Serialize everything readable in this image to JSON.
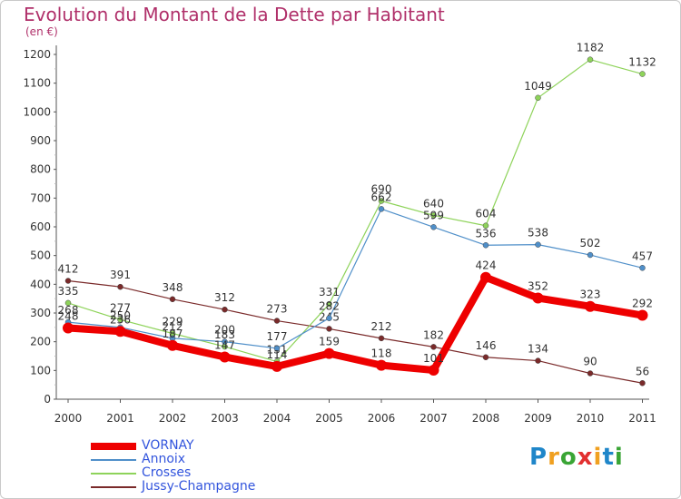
{
  "header": {
    "title": "Evolution du Montant de la Dette par Habitant",
    "unit": "(en €)"
  },
  "logo": {
    "text": "Proxiti",
    "colors": [
      "#1f86c9",
      "#f0a020",
      "#3aa535",
      "#e23030",
      "#f0a020",
      "#1f86c9",
      "#3aa535"
    ]
  },
  "chart_data": {
    "type": "line",
    "x": [
      "2000",
      "2001",
      "2002",
      "2003",
      "2004",
      "2005",
      "2006",
      "2007",
      "2008",
      "2009",
      "2010",
      "2011"
    ],
    "ylim": [
      0,
      1200
    ],
    "yticks": [
      "0",
      "100",
      "200",
      "300",
      "400",
      "500",
      "600",
      "700",
      "800",
      "900",
      "1000",
      "1100",
      "1200"
    ],
    "grid": false,
    "legend_position": "bottom-left",
    "series": [
      {
        "name": "Jussy-Champagne",
        "color": "#7a2a2a",
        "width": 1.2,
        "values": [
          412,
          391,
          348,
          312,
          273,
          245,
          212,
          182,
          146,
          134,
          90,
          56
        ],
        "labels": [
          "412",
          "391",
          "348",
          "312",
          "273",
          "245",
          "212",
          "182",
          "146",
          "134",
          "90",
          "56"
        ]
      },
      {
        "name": "Crosses",
        "color": "#8ed35a",
        "width": 1.2,
        "values": [
          335,
          277,
          229,
          183,
          131,
          331,
          690,
          640,
          604,
          1049,
          1182,
          1132
        ],
        "labels": [
          "335",
          "277",
          "229",
          "183",
          "131",
          "331",
          "690",
          "640",
          "604",
          "1049",
          "1182",
          "1132"
        ]
      },
      {
        "name": "Annoix",
        "color": "#4f8fc9",
        "width": 1.2,
        "values": [
          268,
          250,
          212,
          200,
          177,
          282,
          662,
          599,
          536,
          538,
          502,
          457
        ],
        "labels": [
          "268",
          "250",
          "212",
          "200",
          "177",
          "282",
          "662",
          "599",
          "536",
          "538",
          "502",
          "457"
        ]
      },
      {
        "name": "VORNAY",
        "color": "#ee0000",
        "width": 8,
        "values": [
          248,
          236,
          187,
          147,
          114,
          159,
          118,
          101,
          424,
          352,
          323,
          292
        ],
        "labels": [
          "248",
          "236",
          "187",
          "147",
          "114",
          "159",
          "118",
          "101",
          "424",
          "352",
          "323",
          "292"
        ]
      }
    ],
    "legend_order": [
      "VORNAY",
      "Annoix",
      "Crosses",
      "Jussy-Champagne"
    ]
  }
}
